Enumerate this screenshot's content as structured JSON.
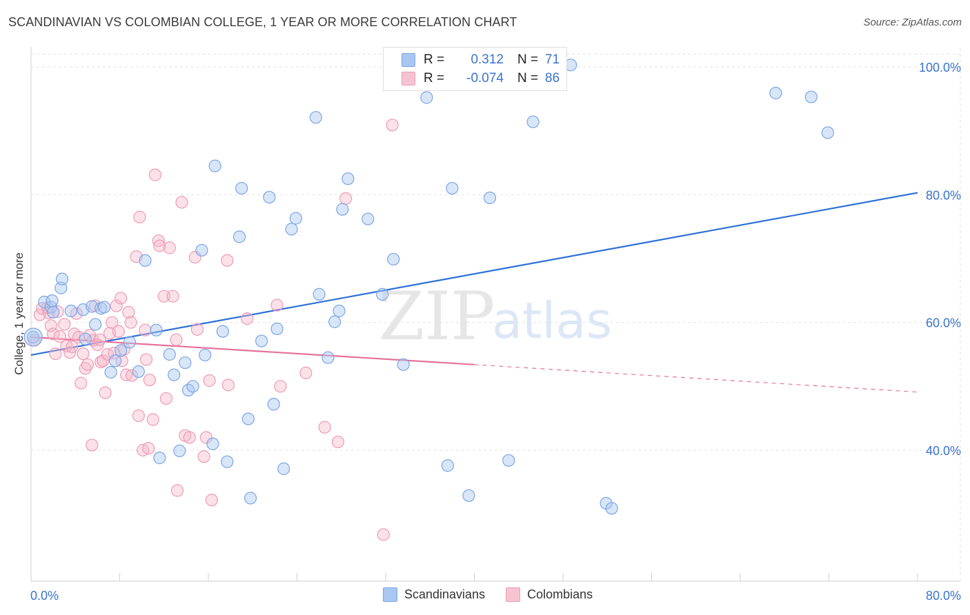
{
  "header": {
    "title": "SCANDINAVIAN VS COLOMBIAN COLLEGE, 1 YEAR OR MORE CORRELATION CHART",
    "source": "Source: ZipAtlas.com"
  },
  "legend": {
    "rows": [
      {
        "r_label": "R =",
        "r_value": "0.312",
        "n_label": "N =",
        "n_value": "71",
        "color": "#a9c7f0"
      },
      {
        "r_label": "R =",
        "r_value": "-0.074",
        "n_label": "N =",
        "n_value": "86",
        "color": "#f6b6c9"
      }
    ],
    "bottom": [
      {
        "label": "Scandinavians",
        "color": "#a9c7f0"
      },
      {
        "label": "Colombians",
        "color": "#f6b6c9"
      }
    ]
  },
  "watermark": {
    "zip": "ZIP",
    "atlas": "atlas"
  },
  "colors": {
    "blue_line": "#2c6fd6",
    "pink_line": "#e5709a",
    "blue_fill": "rgba(169,199,240,0.45)",
    "blue_stroke": "#7aa5e6",
    "pink_fill": "rgba(246,182,201,0.40)",
    "pink_stroke": "#ee9ab5",
    "axis_label": "#3a73cf"
  },
  "chart_data": {
    "type": "scatter",
    "title": "SCANDINAVIAN VS COLOMBIAN COLLEGE, 1 YEAR OR MORE CORRELATION CHART",
    "xlabel": "",
    "ylabel": "College, 1 year or more",
    "xlim": [
      0,
      80
    ],
    "ylim": [
      21,
      103
    ],
    "x_tick_labels": [
      "0.0%",
      "80.0%"
    ],
    "y_ticks": [
      40,
      60,
      80,
      100
    ],
    "y_tick_labels": [
      "40.0%",
      "60.0%",
      "80.0%",
      "100.0%"
    ],
    "grid": true,
    "series": [
      {
        "name": "Scandinavians",
        "r": 0.312,
        "n": 71,
        "trend": {
          "x": [
            0,
            80
          ],
          "y": [
            54.9,
            80.3
          ]
        },
        "points": [
          [
            0.2,
            57.7
          ],
          [
            1.2,
            63.2
          ],
          [
            1.8,
            62.4
          ],
          [
            2.0,
            61.6
          ],
          [
            1.9,
            63.4
          ],
          [
            2.7,
            65.4
          ],
          [
            2.8,
            66.8
          ],
          [
            3.6,
            61.8
          ],
          [
            4.7,
            62.0
          ],
          [
            4.9,
            57.4
          ],
          [
            5.5,
            62.5
          ],
          [
            5.8,
            59.7
          ],
          [
            6.3,
            62.2
          ],
          [
            6.6,
            62.4
          ],
          [
            7.2,
            52.2
          ],
          [
            7.6,
            54.0
          ],
          [
            8.1,
            55.6
          ],
          [
            8.9,
            56.9
          ],
          [
            9.7,
            52.3
          ],
          [
            10.3,
            69.7
          ],
          [
            11.3,
            58.8
          ],
          [
            11.6,
            38.8
          ],
          [
            12.5,
            55.0
          ],
          [
            12.9,
            51.8
          ],
          [
            13.4,
            39.9
          ],
          [
            13.9,
            53.7
          ],
          [
            14.2,
            49.4
          ],
          [
            14.6,
            50.0
          ],
          [
            15.4,
            71.3
          ],
          [
            15.7,
            54.9
          ],
          [
            16.4,
            41.0
          ],
          [
            16.6,
            84.5
          ],
          [
            17.3,
            58.6
          ],
          [
            17.7,
            38.2
          ],
          [
            18.8,
            73.4
          ],
          [
            19.0,
            81.0
          ],
          [
            19.6,
            44.9
          ],
          [
            19.8,
            32.5
          ],
          [
            20.8,
            57.1
          ],
          [
            21.5,
            79.6
          ],
          [
            21.9,
            47.2
          ],
          [
            22.2,
            59.0
          ],
          [
            22.8,
            37.1
          ],
          [
            23.5,
            74.6
          ],
          [
            23.9,
            76.3
          ],
          [
            25.7,
            92.1
          ],
          [
            26.0,
            64.4
          ],
          [
            26.8,
            54.5
          ],
          [
            27.4,
            60.1
          ],
          [
            27.8,
            61.8
          ],
          [
            28.1,
            77.7
          ],
          [
            28.6,
            82.5
          ],
          [
            30.4,
            76.2
          ],
          [
            31.7,
            64.4
          ],
          [
            32.7,
            69.9
          ],
          [
            33.6,
            53.4
          ],
          [
            35.7,
            95.2
          ],
          [
            37.6,
            37.6
          ],
          [
            38.0,
            81.0
          ],
          [
            39.5,
            32.9
          ],
          [
            41.4,
            79.5
          ],
          [
            43.1,
            38.4
          ],
          [
            45.3,
            91.4
          ],
          [
            48.7,
            100.3
          ],
          [
            51.9,
            31.7
          ],
          [
            52.4,
            30.9
          ],
          [
            67.2,
            95.9
          ],
          [
            70.4,
            95.3
          ],
          [
            71.9,
            89.7
          ]
        ]
      },
      {
        "name": "Colombians",
        "r": -0.074,
        "n": 86,
        "trend": {
          "x": [
            0,
            40
          ],
          "y": [
            57.7,
            53.4
          ]
        },
        "trend_extension": {
          "x": [
            40,
            80
          ],
          "y": [
            53.4,
            49.1
          ]
        },
        "points": [
          [
            0.3,
            57.2
          ],
          [
            0.8,
            61.2
          ],
          [
            1.0,
            62.2
          ],
          [
            1.5,
            62.3
          ],
          [
            1.6,
            61.5
          ],
          [
            1.8,
            59.5
          ],
          [
            2.0,
            58.2
          ],
          [
            2.2,
            55.1
          ],
          [
            2.4,
            61.7
          ],
          [
            2.6,
            57.8
          ],
          [
            3.0,
            59.7
          ],
          [
            3.2,
            56.3
          ],
          [
            3.5,
            55.3
          ],
          [
            3.7,
            56.2
          ],
          [
            3.9,
            58.2
          ],
          [
            4.1,
            61.4
          ],
          [
            4.3,
            57.7
          ],
          [
            4.5,
            50.5
          ],
          [
            4.7,
            55.1
          ],
          [
            4.9,
            52.8
          ],
          [
            5.1,
            53.4
          ],
          [
            5.3,
            58.0
          ],
          [
            5.5,
            40.8
          ],
          [
            5.6,
            57.2
          ],
          [
            5.8,
            62.6
          ],
          [
            6.0,
            56.5
          ],
          [
            6.2,
            57.3
          ],
          [
            6.3,
            53.8
          ],
          [
            6.5,
            54.0
          ],
          [
            6.7,
            49.0
          ],
          [
            6.9,
            55.0
          ],
          [
            7.1,
            58.3
          ],
          [
            7.3,
            60.0
          ],
          [
            7.5,
            55.2
          ],
          [
            7.7,
            62.6
          ],
          [
            7.9,
            58.6
          ],
          [
            8.1,
            63.8
          ],
          [
            8.2,
            54.0
          ],
          [
            8.4,
            55.8
          ],
          [
            8.6,
            51.8
          ],
          [
            8.8,
            61.6
          ],
          [
            9.0,
            60.0
          ],
          [
            9.1,
            51.7
          ],
          [
            9.5,
            70.3
          ],
          [
            9.7,
            45.4
          ],
          [
            9.8,
            76.5
          ],
          [
            10.1,
            40.0
          ],
          [
            10.3,
            58.8
          ],
          [
            10.4,
            54.2
          ],
          [
            10.6,
            40.3
          ],
          [
            10.7,
            51.0
          ],
          [
            11.0,
            44.8
          ],
          [
            11.2,
            83.1
          ],
          [
            11.5,
            72.8
          ],
          [
            11.6,
            72.0
          ],
          [
            12.0,
            64.1
          ],
          [
            12.2,
            48.1
          ],
          [
            12.5,
            71.7
          ],
          [
            12.8,
            64.1
          ],
          [
            13.1,
            57.3
          ],
          [
            13.2,
            33.7
          ],
          [
            13.6,
            78.8
          ],
          [
            13.9,
            42.3
          ],
          [
            14.3,
            42.0
          ],
          [
            14.8,
            70.2
          ],
          [
            15.0,
            58.9
          ],
          [
            15.6,
            39.0
          ],
          [
            15.8,
            42.0
          ],
          [
            16.1,
            50.9
          ],
          [
            16.3,
            32.2
          ],
          [
            17.7,
            69.7
          ],
          [
            17.8,
            50.2
          ],
          [
            19.5,
            60.6
          ],
          [
            22.2,
            62.7
          ],
          [
            22.5,
            50.0
          ],
          [
            24.8,
            52.1
          ],
          [
            26.5,
            43.6
          ],
          [
            27.7,
            41.3
          ],
          [
            28.4,
            79.4
          ],
          [
            31.8,
            26.8
          ],
          [
            32.6,
            90.9
          ]
        ]
      }
    ]
  }
}
